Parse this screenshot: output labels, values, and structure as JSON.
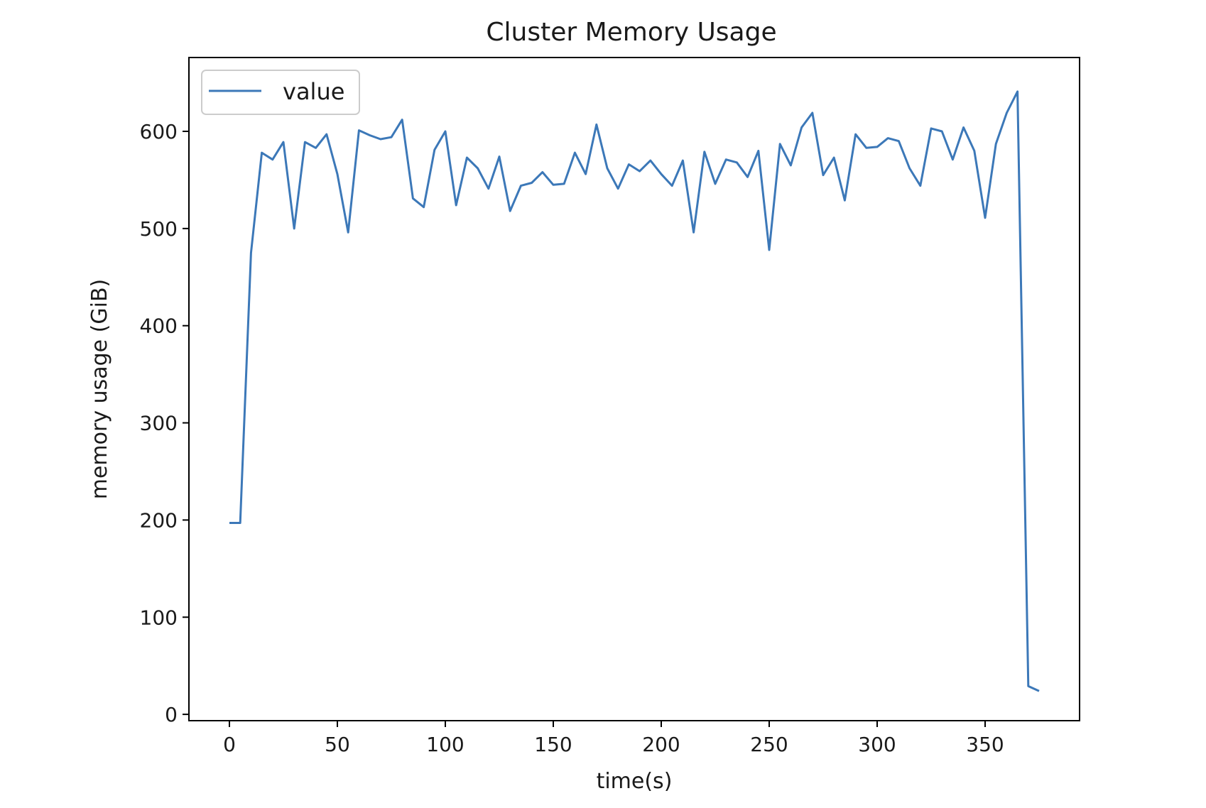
{
  "chart_data": {
    "type": "line",
    "title": "Cluster Memory Usage",
    "xlabel": "time(s)",
    "ylabel": "memory usage (GiB)",
    "xlim": [
      -18.75,
      393.75
    ],
    "ylim": [
      -6.5,
      676
    ],
    "xticks": [
      0,
      50,
      100,
      150,
      200,
      250,
      300,
      350
    ],
    "yticks": [
      0,
      100,
      200,
      300,
      400,
      500,
      600
    ],
    "grid": false,
    "legend_position": "top-left",
    "series": [
      {
        "name": "value",
        "color": "#3c78b8",
        "x": [
          0,
          5,
          10,
          15,
          20,
          25,
          30,
          35,
          40,
          45,
          50,
          55,
          60,
          65,
          70,
          75,
          80,
          85,
          90,
          95,
          100,
          105,
          110,
          115,
          120,
          125,
          130,
          135,
          140,
          145,
          150,
          155,
          160,
          165,
          170,
          175,
          180,
          185,
          190,
          195,
          200,
          205,
          210,
          215,
          220,
          225,
          230,
          235,
          240,
          245,
          250,
          255,
          260,
          265,
          270,
          275,
          280,
          285,
          290,
          295,
          300,
          305,
          310,
          315,
          320,
          325,
          330,
          335,
          340,
          345,
          350,
          355,
          360,
          365,
          370,
          375
        ],
        "y": [
          197,
          197,
          475,
          578,
          571,
          589,
          500,
          589,
          583,
          597,
          556,
          496,
          601,
          596,
          592,
          594,
          612,
          531,
          522,
          581,
          600,
          524,
          573,
          562,
          541,
          574,
          518,
          544,
          547,
          558,
          545,
          546,
          578,
          556,
          607,
          562,
          541,
          566,
          559,
          570,
          556,
          544,
          570,
          496,
          579,
          546,
          571,
          568,
          553,
          580,
          478,
          587,
          565,
          604,
          619,
          555,
          573,
          529,
          597,
          583,
          584,
          593,
          590,
          562,
          544,
          603,
          600,
          571,
          604,
          580,
          511,
          587,
          619,
          641,
          29,
          24
        ]
      }
    ]
  }
}
